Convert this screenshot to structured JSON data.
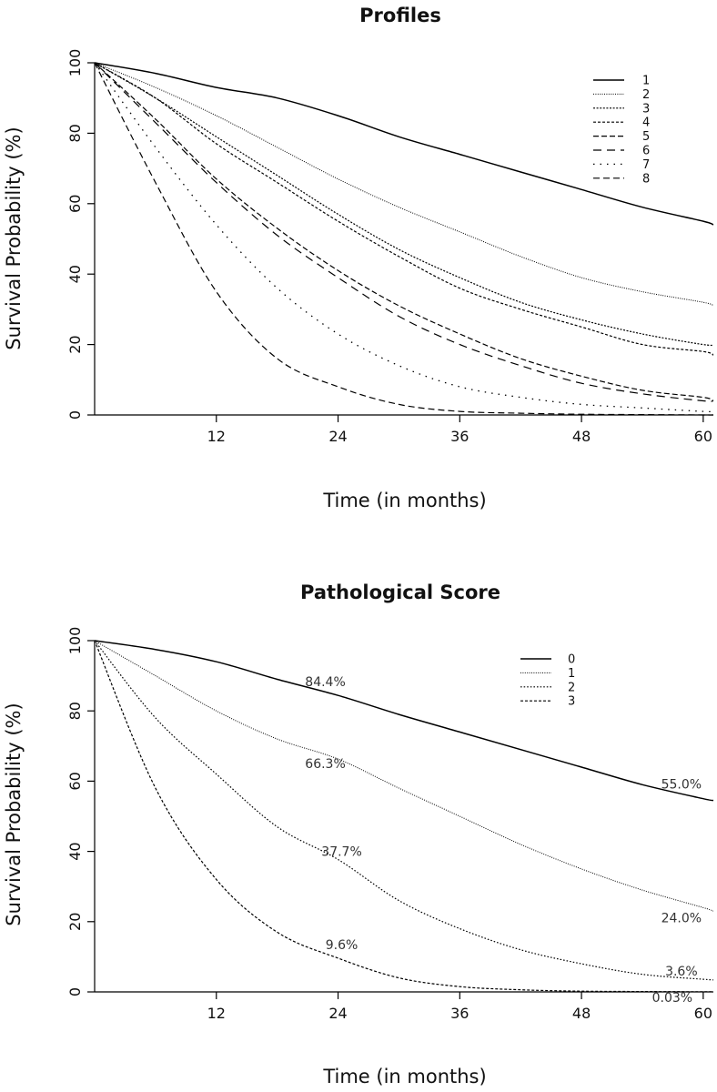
{
  "chart_data": [
    {
      "type": "line",
      "title": "Profiles",
      "xlabel": "Time (in months)",
      "ylabel": "Survival Probability (%)",
      "xlim": [
        0,
        61
      ],
      "ylim": [
        0,
        100
      ],
      "xticks": [
        12,
        24,
        36,
        48,
        60
      ],
      "yticks": [
        0,
        20,
        40,
        60,
        80,
        100
      ],
      "grid": false,
      "legend_position": "top-right",
      "x": [
        0,
        6,
        12,
        18,
        24,
        30,
        36,
        42,
        48,
        54,
        60,
        61
      ],
      "series": [
        {
          "name": "1",
          "values": [
            100,
            97,
            93,
            90,
            85,
            79,
            74,
            69,
            64,
            59,
            55,
            54
          ],
          "color": "#000000"
        },
        {
          "name": "2",
          "values": [
            100,
            93,
            85,
            76,
            67,
            59,
            52,
            45,
            39,
            35,
            32,
            31
          ],
          "color": "#000000"
        },
        {
          "name": "3",
          "values": [
            100,
            90,
            79,
            68,
            57,
            47,
            39,
            32,
            27,
            23,
            20,
            20
          ],
          "color": "#000000"
        },
        {
          "name": "4",
          "values": [
            100,
            90,
            77,
            66,
            55,
            45,
            36,
            30,
            25,
            20,
            18,
            17
          ],
          "color": "#000000"
        },
        {
          "name": "5",
          "values": [
            100,
            84,
            67,
            53,
            41,
            31,
            23,
            16,
            11,
            7,
            5,
            4
          ],
          "color": "#000000"
        },
        {
          "name": "6",
          "values": [
            100,
            83,
            66,
            51,
            39,
            28,
            20,
            14,
            9,
            6,
            4,
            4
          ],
          "color": "#000000"
        },
        {
          "name": "7",
          "values": [
            100,
            76,
            54,
            36,
            23,
            14,
            8,
            5,
            3,
            2,
            1,
            1
          ],
          "color": "#000000"
        },
        {
          "name": "8",
          "values": [
            100,
            66,
            35,
            16,
            8,
            3,
            1,
            0.5,
            0.2,
            0.1,
            0,
            0
          ],
          "color": "#000000"
        }
      ]
    },
    {
      "type": "line",
      "title": "Pathological Score",
      "xlabel": "Time (in months)",
      "ylabel": "Survival Probability (%)",
      "xlim": [
        0,
        61
      ],
      "ylim": [
        0,
        100
      ],
      "xticks": [
        12,
        24,
        36,
        48,
        60
      ],
      "yticks": [
        0,
        20,
        40,
        60,
        80,
        100
      ],
      "grid": false,
      "legend_position": "top-right",
      "x": [
        0,
        6,
        12,
        18,
        24,
        30,
        36,
        42,
        48,
        54,
        60,
        61
      ],
      "series": [
        {
          "name": "0",
          "values": [
            100,
            97.5,
            94,
            89,
            84.4,
            79,
            74,
            69,
            64,
            59,
            55,
            54.5
          ],
          "color": "#000000"
        },
        {
          "name": "1",
          "values": [
            100,
            90,
            80,
            72,
            66.3,
            58,
            50,
            42,
            35,
            29,
            24,
            23
          ],
          "color": "#000000"
        },
        {
          "name": "2",
          "values": [
            100,
            78,
            62,
            47,
            37.7,
            26,
            18,
            12,
            8,
            5,
            3.6,
            3.4
          ],
          "color": "#000000"
        },
        {
          "name": "3",
          "values": [
            100,
            58,
            32,
            17,
            9.6,
            4,
            1.5,
            0.6,
            0.2,
            0.1,
            0.03,
            0.02
          ],
          "color": "#000000"
        }
      ],
      "annotations": [
        {
          "text": "84.4%",
          "x": 24,
          "y": 84.4,
          "series": "0"
        },
        {
          "text": "55.0%",
          "x": 60,
          "y": 55.0,
          "series": "0"
        },
        {
          "text": "66.3%",
          "x": 24,
          "y": 66.3,
          "series": "1"
        },
        {
          "text": "24.0%",
          "x": 60,
          "y": 24.0,
          "series": "1"
        },
        {
          "text": "37.7%",
          "x": 24,
          "y": 37.7,
          "series": "2"
        },
        {
          "text": "3.6%",
          "x": 60,
          "y": 3.6,
          "series": "2"
        },
        {
          "text": "9.6%",
          "x": 24,
          "y": 9.6,
          "series": "3"
        },
        {
          "text": "0.03%",
          "x": 60,
          "y": 0.03,
          "series": "3"
        }
      ]
    }
  ]
}
